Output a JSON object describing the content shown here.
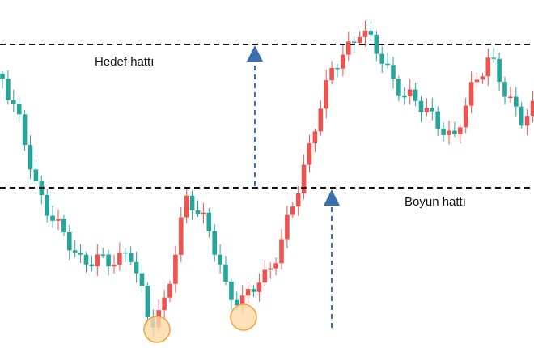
{
  "labels": {
    "target_line": "Hedef hattı",
    "neckline": "Boyun hattı"
  }
}
